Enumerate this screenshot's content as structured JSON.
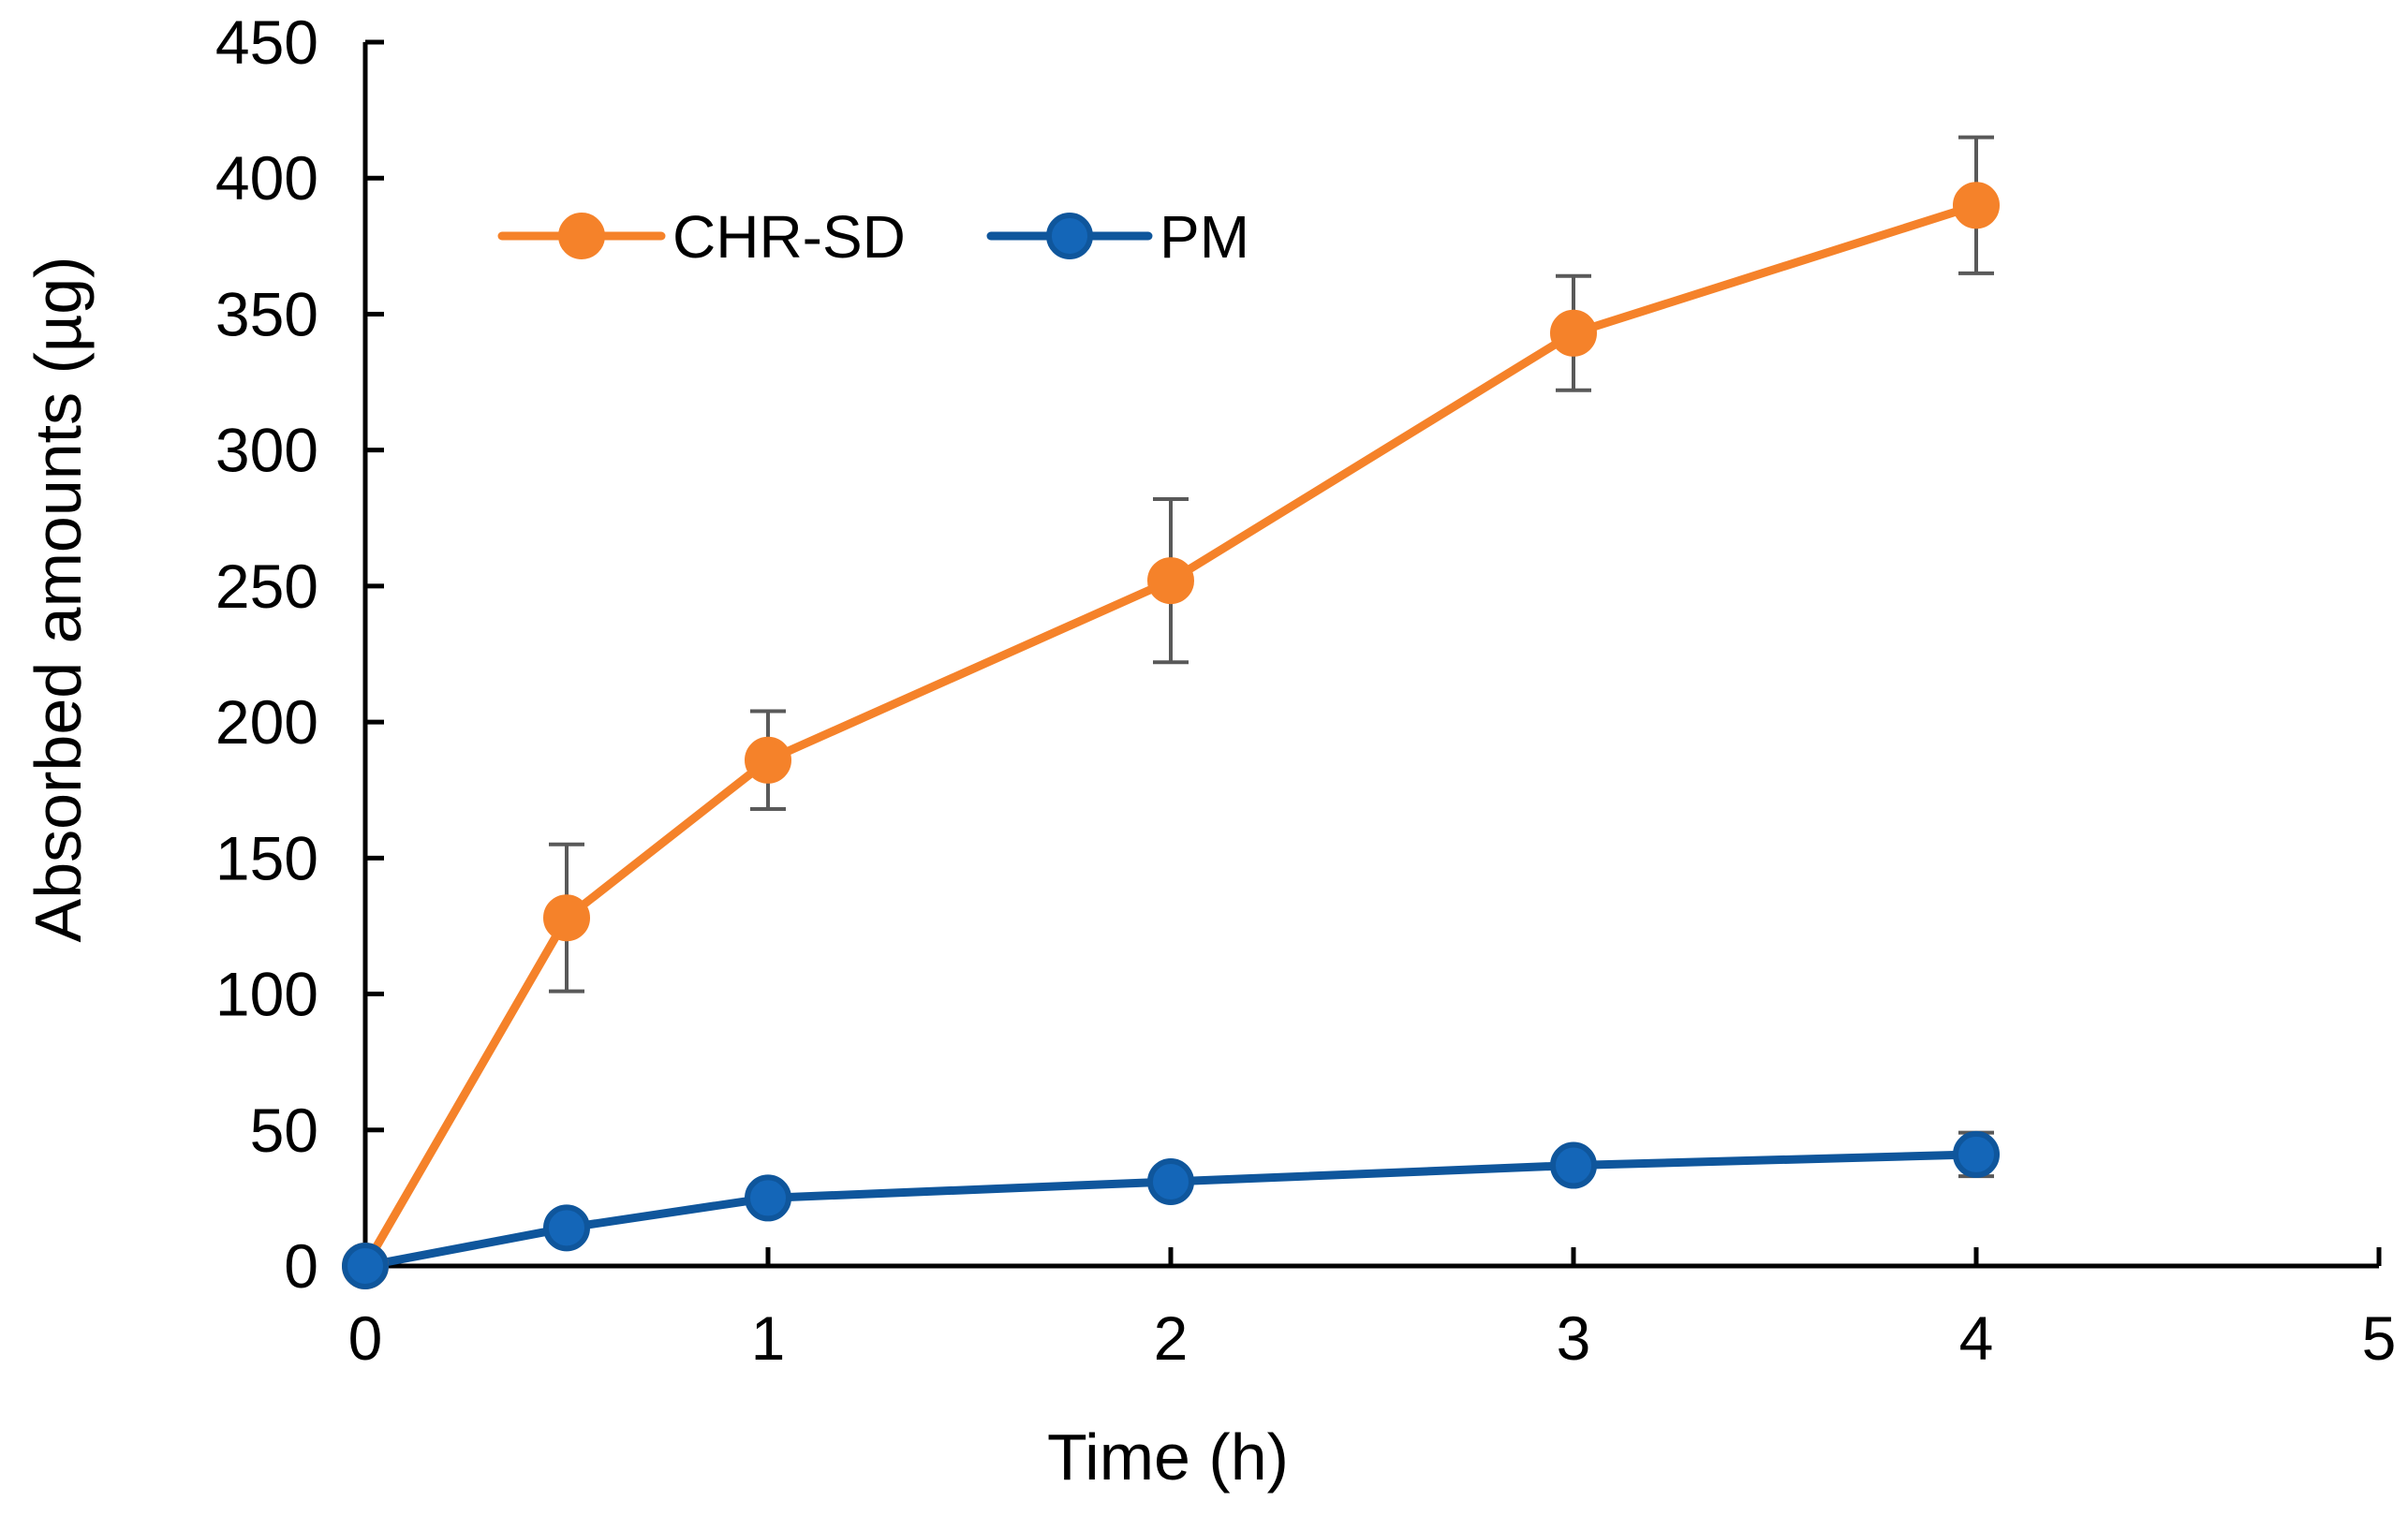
{
  "chart_data": {
    "type": "line",
    "title": "",
    "xlabel": "Time (h)",
    "ylabel": "Absorbed amounts (µg)",
    "xlim": [
      0,
      5
    ],
    "ylim": [
      0,
      450
    ],
    "xticks": [
      0,
      1,
      2,
      3,
      4,
      5
    ],
    "yticks": [
      0,
      50,
      100,
      150,
      200,
      250,
      300,
      350,
      400,
      450
    ],
    "xtick_labels": [
      "0",
      "1",
      "2",
      "3",
      "4",
      "5"
    ],
    "ytick_labels": [
      "0",
      "50",
      "100",
      "150",
      "200",
      "250",
      "300",
      "350",
      "400",
      "450"
    ],
    "grid": false,
    "legend_position": "top-left",
    "series": [
      {
        "name": "CHR-SD",
        "color": "#F5822A",
        "x": [
          0,
          0.5,
          1,
          2,
          3,
          4
        ],
        "y": [
          0,
          128,
          186,
          252,
          343,
          390
        ],
        "error": [
          0,
          27,
          18,
          30,
          21,
          25
        ]
      },
      {
        "name": "PM",
        "color": "#0F569C",
        "marker_fill": "#1466B8",
        "x": [
          0,
          0.5,
          1,
          2,
          3,
          4
        ],
        "y": [
          0,
          14,
          25,
          31,
          37,
          41
        ],
        "error": [
          0,
          0,
          0,
          0,
          5,
          8
        ]
      }
    ],
    "error_bar_color": "#595959",
    "axis_color": "#000000"
  }
}
